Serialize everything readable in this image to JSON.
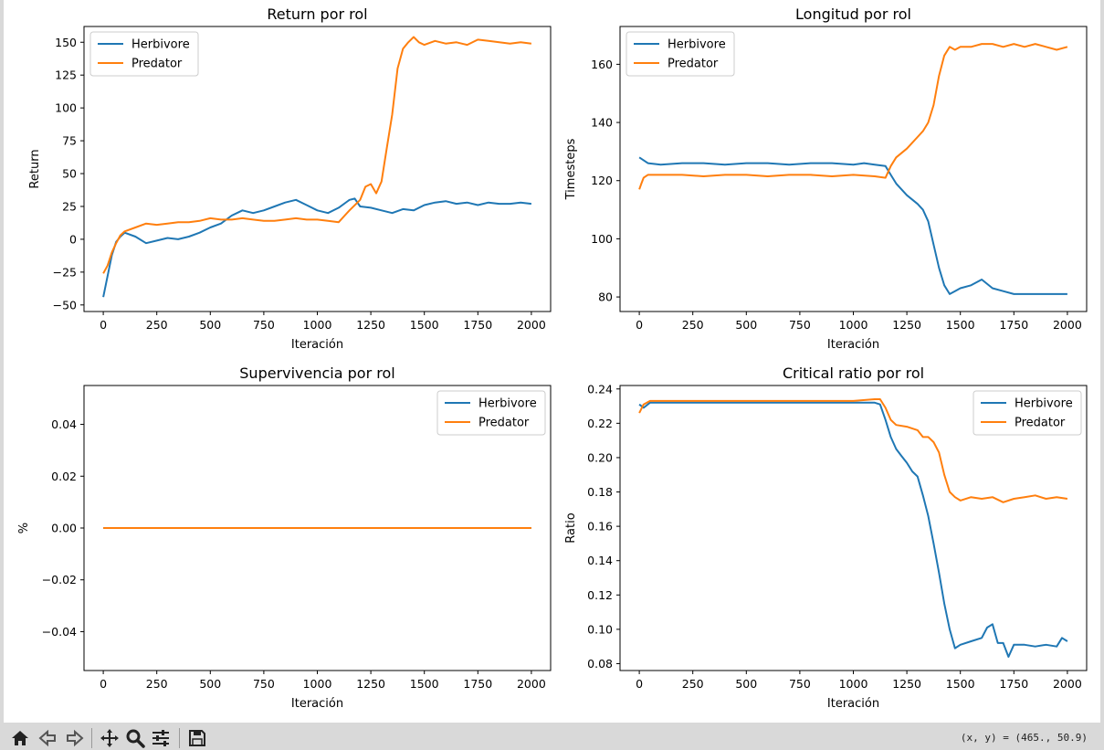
{
  "colors": {
    "Herbivore": "#1f77b4",
    "Predator": "#ff7f0e"
  },
  "toolbar": {
    "buttons": [
      "home-icon",
      "back-icon",
      "forward-icon",
      "pan-icon",
      "zoom-icon",
      "configure-icon",
      "save-icon"
    ],
    "coords": "(x, y) = (465., 50.9)"
  },
  "chart_data": [
    {
      "type": "line",
      "title": "Return por rol",
      "xlabel": "Iteración",
      "ylabel": "Return",
      "xlim": [
        -90,
        2090
      ],
      "ylim": [
        -55,
        162
      ],
      "xticks": [
        0,
        250,
        500,
        750,
        1000,
        1250,
        1500,
        1750,
        2000
      ],
      "yticks": [
        -50,
        -25,
        0,
        25,
        50,
        75,
        100,
        125,
        150
      ],
      "legend": "top-left",
      "grid": false,
      "series": [
        {
          "name": "Herbivore",
          "x": [
            0,
            20,
            40,
            60,
            80,
            100,
            150,
            200,
            250,
            300,
            350,
            400,
            450,
            500,
            550,
            600,
            650,
            700,
            750,
            800,
            850,
            900,
            950,
            1000,
            1050,
            1100,
            1150,
            1175,
            1200,
            1250,
            1300,
            1350,
            1400,
            1450,
            1500,
            1550,
            1600,
            1650,
            1700,
            1750,
            1800,
            1850,
            1900,
            1950,
            2000
          ],
          "y": [
            -44,
            -28,
            -12,
            -2,
            2,
            5,
            2,
            -3,
            -1,
            1,
            0,
            2,
            5,
            9,
            12,
            18,
            22,
            20,
            22,
            25,
            28,
            30,
            26,
            22,
            20,
            24,
            30,
            31,
            25,
            24,
            22,
            20,
            23,
            22,
            26,
            28,
            29,
            27,
            28,
            26,
            28,
            27,
            27,
            28,
            27
          ]
        },
        {
          "name": "Predator",
          "x": [
            0,
            20,
            40,
            60,
            80,
            100,
            150,
            200,
            250,
            300,
            350,
            400,
            450,
            500,
            550,
            600,
            650,
            700,
            750,
            800,
            850,
            900,
            950,
            1000,
            1050,
            1100,
            1150,
            1200,
            1225,
            1250,
            1275,
            1300,
            1325,
            1350,
            1375,
            1400,
            1425,
            1450,
            1475,
            1500,
            1550,
            1600,
            1650,
            1700,
            1750,
            1800,
            1850,
            1900,
            1950,
            2000
          ],
          "y": [
            -26,
            -20,
            -10,
            -3,
            3,
            6,
            9,
            12,
            11,
            12,
            13,
            13,
            14,
            16,
            15,
            15,
            16,
            15,
            14,
            14,
            15,
            16,
            15,
            15,
            14,
            13,
            22,
            30,
            40,
            42,
            35,
            44,
            70,
            95,
            130,
            145,
            150,
            154,
            150,
            148,
            151,
            149,
            150,
            148,
            152,
            151,
            150,
            149,
            150,
            149
          ]
        }
      ]
    },
    {
      "type": "line",
      "title": "Longitud por rol",
      "xlabel": "Iteración",
      "ylabel": "Timesteps",
      "xlim": [
        -90,
        2090
      ],
      "ylim": [
        75,
        173
      ],
      "xticks": [
        0,
        250,
        500,
        750,
        1000,
        1250,
        1500,
        1750,
        2000
      ],
      "yticks": [
        80,
        100,
        120,
        140,
        160
      ],
      "legend": "top-left",
      "grid": false,
      "series": [
        {
          "name": "Herbivore",
          "x": [
            0,
            20,
            40,
            100,
            200,
            300,
            400,
            500,
            600,
            700,
            800,
            900,
            1000,
            1050,
            1100,
            1150,
            1175,
            1200,
            1250,
            1300,
            1325,
            1350,
            1375,
            1400,
            1425,
            1450,
            1475,
            1500,
            1550,
            1600,
            1650,
            1700,
            1750,
            1800,
            1850,
            1900,
            1950,
            2000
          ],
          "y": [
            128,
            127,
            126,
            125.5,
            126,
            126,
            125.5,
            126,
            126,
            125.5,
            126,
            126,
            125.5,
            126,
            125.5,
            125,
            122,
            119,
            115,
            112,
            110,
            106,
            98,
            90,
            84,
            81,
            82,
            83,
            84,
            86,
            83,
            82,
            81,
            81,
            81,
            81,
            81,
            81
          ]
        },
        {
          "name": "Predator",
          "x": [
            0,
            10,
            20,
            40,
            100,
            200,
            300,
            400,
            500,
            600,
            700,
            800,
            900,
            1000,
            1100,
            1150,
            1175,
            1200,
            1250,
            1275,
            1300,
            1325,
            1350,
            1375,
            1400,
            1425,
            1450,
            1475,
            1500,
            1550,
            1600,
            1650,
            1700,
            1750,
            1800,
            1850,
            1900,
            1950,
            2000
          ],
          "y": [
            117,
            119,
            121,
            122,
            122,
            122,
            121.5,
            122,
            122,
            121.5,
            122,
            122,
            121.5,
            122,
            121.5,
            121,
            125,
            128,
            131,
            133,
            135,
            137,
            140,
            146,
            156,
            163,
            166,
            165,
            166,
            166,
            167,
            167,
            166,
            167,
            166,
            167,
            166,
            165,
            166
          ]
        }
      ]
    },
    {
      "type": "line",
      "title": "Supervivencia por rol",
      "xlabel": "Iteración",
      "ylabel": "%",
      "xlim": [
        -90,
        2090
      ],
      "ylim": [
        -0.055,
        0.055
      ],
      "xticks": [
        0,
        250,
        500,
        750,
        1000,
        1250,
        1500,
        1750,
        2000
      ],
      "yticks": [
        -0.04,
        -0.02,
        0.0,
        0.02,
        0.04
      ],
      "ytick_labels": [
        "−0.04",
        "−0.02",
        "0.00",
        "0.02",
        "0.04"
      ],
      "legend": "top-right",
      "grid": false,
      "series": [
        {
          "name": "Herbivore",
          "x": [
            0,
            2000
          ],
          "y": [
            0,
            0
          ]
        },
        {
          "name": "Predator",
          "x": [
            0,
            2000
          ],
          "y": [
            0,
            0
          ]
        }
      ]
    },
    {
      "type": "line",
      "title": "Critical ratio por rol",
      "xlabel": "Iteración",
      "ylabel": "Ratio",
      "xlim": [
        -90,
        2090
      ],
      "ylim": [
        0.076,
        0.242
      ],
      "xticks": [
        0,
        250,
        500,
        750,
        1000,
        1250,
        1500,
        1750,
        2000
      ],
      "yticks": [
        0.08,
        0.1,
        0.12,
        0.14,
        0.16,
        0.18,
        0.2,
        0.22,
        0.24
      ],
      "ytick_labels": [
        "0.08",
        "0.10",
        "0.12",
        "0.14",
        "0.16",
        "0.18",
        "0.20",
        "0.22",
        "0.24"
      ],
      "legend": "top-right",
      "grid": false,
      "series": [
        {
          "name": "Herbivore",
          "x": [
            0,
            20,
            50,
            100,
            200,
            300,
            400,
            500,
            600,
            700,
            800,
            900,
            1000,
            1100,
            1125,
            1150,
            1175,
            1200,
            1225,
            1250,
            1275,
            1300,
            1325,
            1350,
            1375,
            1400,
            1425,
            1450,
            1475,
            1500,
            1550,
            1600,
            1625,
            1650,
            1675,
            1700,
            1725,
            1750,
            1800,
            1850,
            1900,
            1950,
            1975,
            2000
          ],
          "y": [
            0.231,
            0.229,
            0.232,
            0.232,
            0.232,
            0.232,
            0.232,
            0.232,
            0.232,
            0.232,
            0.232,
            0.232,
            0.232,
            0.232,
            0.231,
            0.222,
            0.212,
            0.205,
            0.201,
            0.197,
            0.192,
            0.189,
            0.178,
            0.166,
            0.15,
            0.133,
            0.115,
            0.1,
            0.089,
            0.091,
            0.093,
            0.095,
            0.101,
            0.103,
            0.092,
            0.092,
            0.084,
            0.091,
            0.091,
            0.09,
            0.091,
            0.09,
            0.095,
            0.093
          ]
        },
        {
          "name": "Predator",
          "x": [
            0,
            20,
            50,
            100,
            200,
            300,
            400,
            500,
            600,
            700,
            800,
            900,
            1000,
            1100,
            1125,
            1150,
            1175,
            1200,
            1250,
            1300,
            1325,
            1350,
            1375,
            1400,
            1425,
            1450,
            1475,
            1500,
            1550,
            1600,
            1650,
            1700,
            1750,
            1800,
            1850,
            1900,
            1950,
            2000
          ],
          "y": [
            0.226,
            0.231,
            0.233,
            0.233,
            0.233,
            0.233,
            0.233,
            0.233,
            0.233,
            0.233,
            0.233,
            0.233,
            0.233,
            0.234,
            0.234,
            0.229,
            0.222,
            0.219,
            0.218,
            0.216,
            0.212,
            0.212,
            0.209,
            0.203,
            0.19,
            0.18,
            0.177,
            0.175,
            0.177,
            0.176,
            0.177,
            0.174,
            0.176,
            0.177,
            0.178,
            0.176,
            0.177,
            0.176
          ]
        }
      ]
    }
  ]
}
